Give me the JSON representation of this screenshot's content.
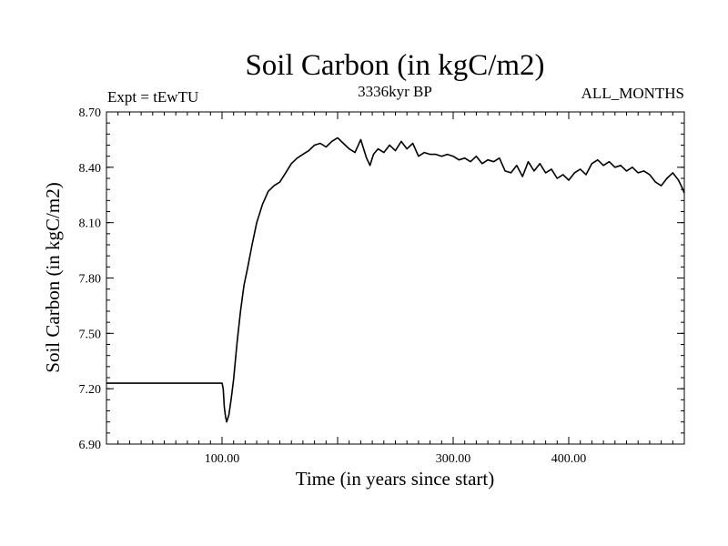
{
  "chart_data": {
    "type": "line",
    "title": "Soil Carbon (in kgC/m2)",
    "subtitle_left": "Expt = tEwTU",
    "subtitle_center": "3336kyr BP",
    "subtitle_right": "ALL_MONTHS",
    "xlabel": "Time (in years since start)",
    "ylabel": "Soil Carbon (in kgC/m2)",
    "xlim": [
      0,
      500
    ],
    "ylim": [
      6.9,
      8.7
    ],
    "xticks": [
      100,
      200,
      300,
      400
    ],
    "xtick_labels": [
      "100.00",
      "",
      "300.00",
      "400.00"
    ],
    "yticks": [
      6.9,
      7.2,
      7.5,
      7.8,
      8.1,
      8.4,
      8.7
    ],
    "ytick_labels": [
      "6.90",
      "7.20",
      "7.50",
      "7.80",
      "8.10",
      "8.40",
      "8.70"
    ],
    "series": [
      {
        "name": "Soil Carbon",
        "color": "#000000",
        "x": [
          0,
          100,
          101,
          102,
          103,
          104,
          106,
          108,
          110,
          113,
          116,
          119,
          122,
          126,
          130,
          135,
          140,
          145,
          150,
          155,
          160,
          165,
          170,
          175,
          180,
          185,
          190,
          195,
          200,
          205,
          210,
          215,
          220,
          225,
          228,
          231,
          235,
          240,
          245,
          250,
          255,
          260,
          265,
          270,
          275,
          280,
          285,
          290,
          295,
          300,
          305,
          310,
          315,
          320,
          325,
          330,
          335,
          340,
          345,
          350,
          355,
          360,
          365,
          370,
          375,
          380,
          385,
          390,
          395,
          400,
          405,
          410,
          415,
          420,
          425,
          430,
          435,
          440,
          445,
          450,
          455,
          460,
          465,
          470,
          475,
          480,
          485,
          490,
          495,
          498,
          500
        ],
        "values": [
          7.23,
          7.23,
          7.2,
          7.1,
          7.05,
          7.02,
          7.06,
          7.15,
          7.25,
          7.45,
          7.62,
          7.76,
          7.85,
          7.98,
          8.1,
          8.2,
          8.27,
          8.3,
          8.32,
          8.37,
          8.42,
          8.45,
          8.47,
          8.49,
          8.52,
          8.53,
          8.51,
          8.54,
          8.56,
          8.53,
          8.5,
          8.48,
          8.55,
          8.45,
          8.41,
          8.47,
          8.5,
          8.48,
          8.52,
          8.49,
          8.54,
          8.5,
          8.53,
          8.46,
          8.48,
          8.47,
          8.47,
          8.46,
          8.47,
          8.46,
          8.44,
          8.45,
          8.43,
          8.46,
          8.42,
          8.44,
          8.43,
          8.45,
          8.38,
          8.37,
          8.41,
          8.35,
          8.43,
          8.38,
          8.42,
          8.37,
          8.39,
          8.34,
          8.36,
          8.33,
          8.37,
          8.39,
          8.36,
          8.42,
          8.44,
          8.41,
          8.43,
          8.4,
          8.41,
          8.38,
          8.4,
          8.37,
          8.38,
          8.36,
          8.32,
          8.3,
          8.34,
          8.37,
          8.33,
          8.29,
          8.26
        ]
      }
    ]
  }
}
